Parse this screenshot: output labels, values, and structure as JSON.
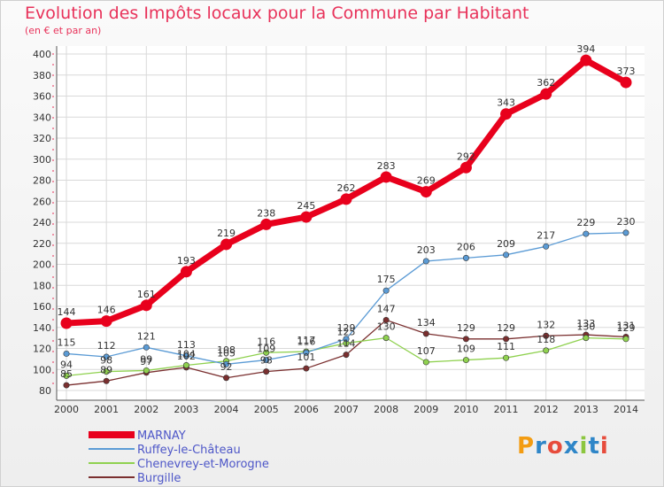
{
  "title": "Evolution des Impôts locaux pour la Commune par Habitant",
  "subtitle": "(en € et par an)",
  "logo": {
    "text": "Proxiti",
    "colors": [
      "#f39c12",
      "#2f86c8",
      "#e74c3c",
      "#2f86c8",
      "#8cc63f",
      "#2f86c8",
      "#e74c3c"
    ]
  },
  "chart_data": {
    "type": "line",
    "x": [
      "2000",
      "2001",
      "2002",
      "2003",
      "2004",
      "2005",
      "2006",
      "2007",
      "2008",
      "2009",
      "2010",
      "2011",
      "2012",
      "2013",
      "2014"
    ],
    "ylim": [
      80,
      400
    ],
    "yticks": [
      80,
      100,
      120,
      140,
      160,
      180,
      200,
      220,
      240,
      260,
      280,
      300,
      320,
      340,
      360,
      380,
      400
    ],
    "grid": true,
    "legend_placement": "bottom-left",
    "series": [
      {
        "name": "MARNAY",
        "color": "#e8001c",
        "values": [
          144,
          146,
          161,
          193,
          219,
          238,
          245,
          262,
          283,
          269,
          292,
          343,
          362,
          394,
          373
        ]
      },
      {
        "name": "Ruffey-le-Château",
        "color": "#5b9bd5",
        "values": [
          115,
          112,
          121,
          113,
          105,
          109,
          116,
          129,
          175,
          203,
          206,
          209,
          217,
          229,
          230
        ]
      },
      {
        "name": "Chenevrey-et-Morogne",
        "color": "#8fd14f",
        "values": [
          94,
          98,
          99,
          104,
          108,
          116,
          117,
          125,
          130,
          107,
          109,
          111,
          118,
          130,
          129
        ]
      },
      {
        "name": "Burgille",
        "color": "#7a2f2f",
        "values": [
          85,
          89,
          97,
          102,
          92,
          98,
          101,
          114,
          147,
          134,
          129,
          129,
          132,
          133,
          131
        ]
      }
    ]
  }
}
